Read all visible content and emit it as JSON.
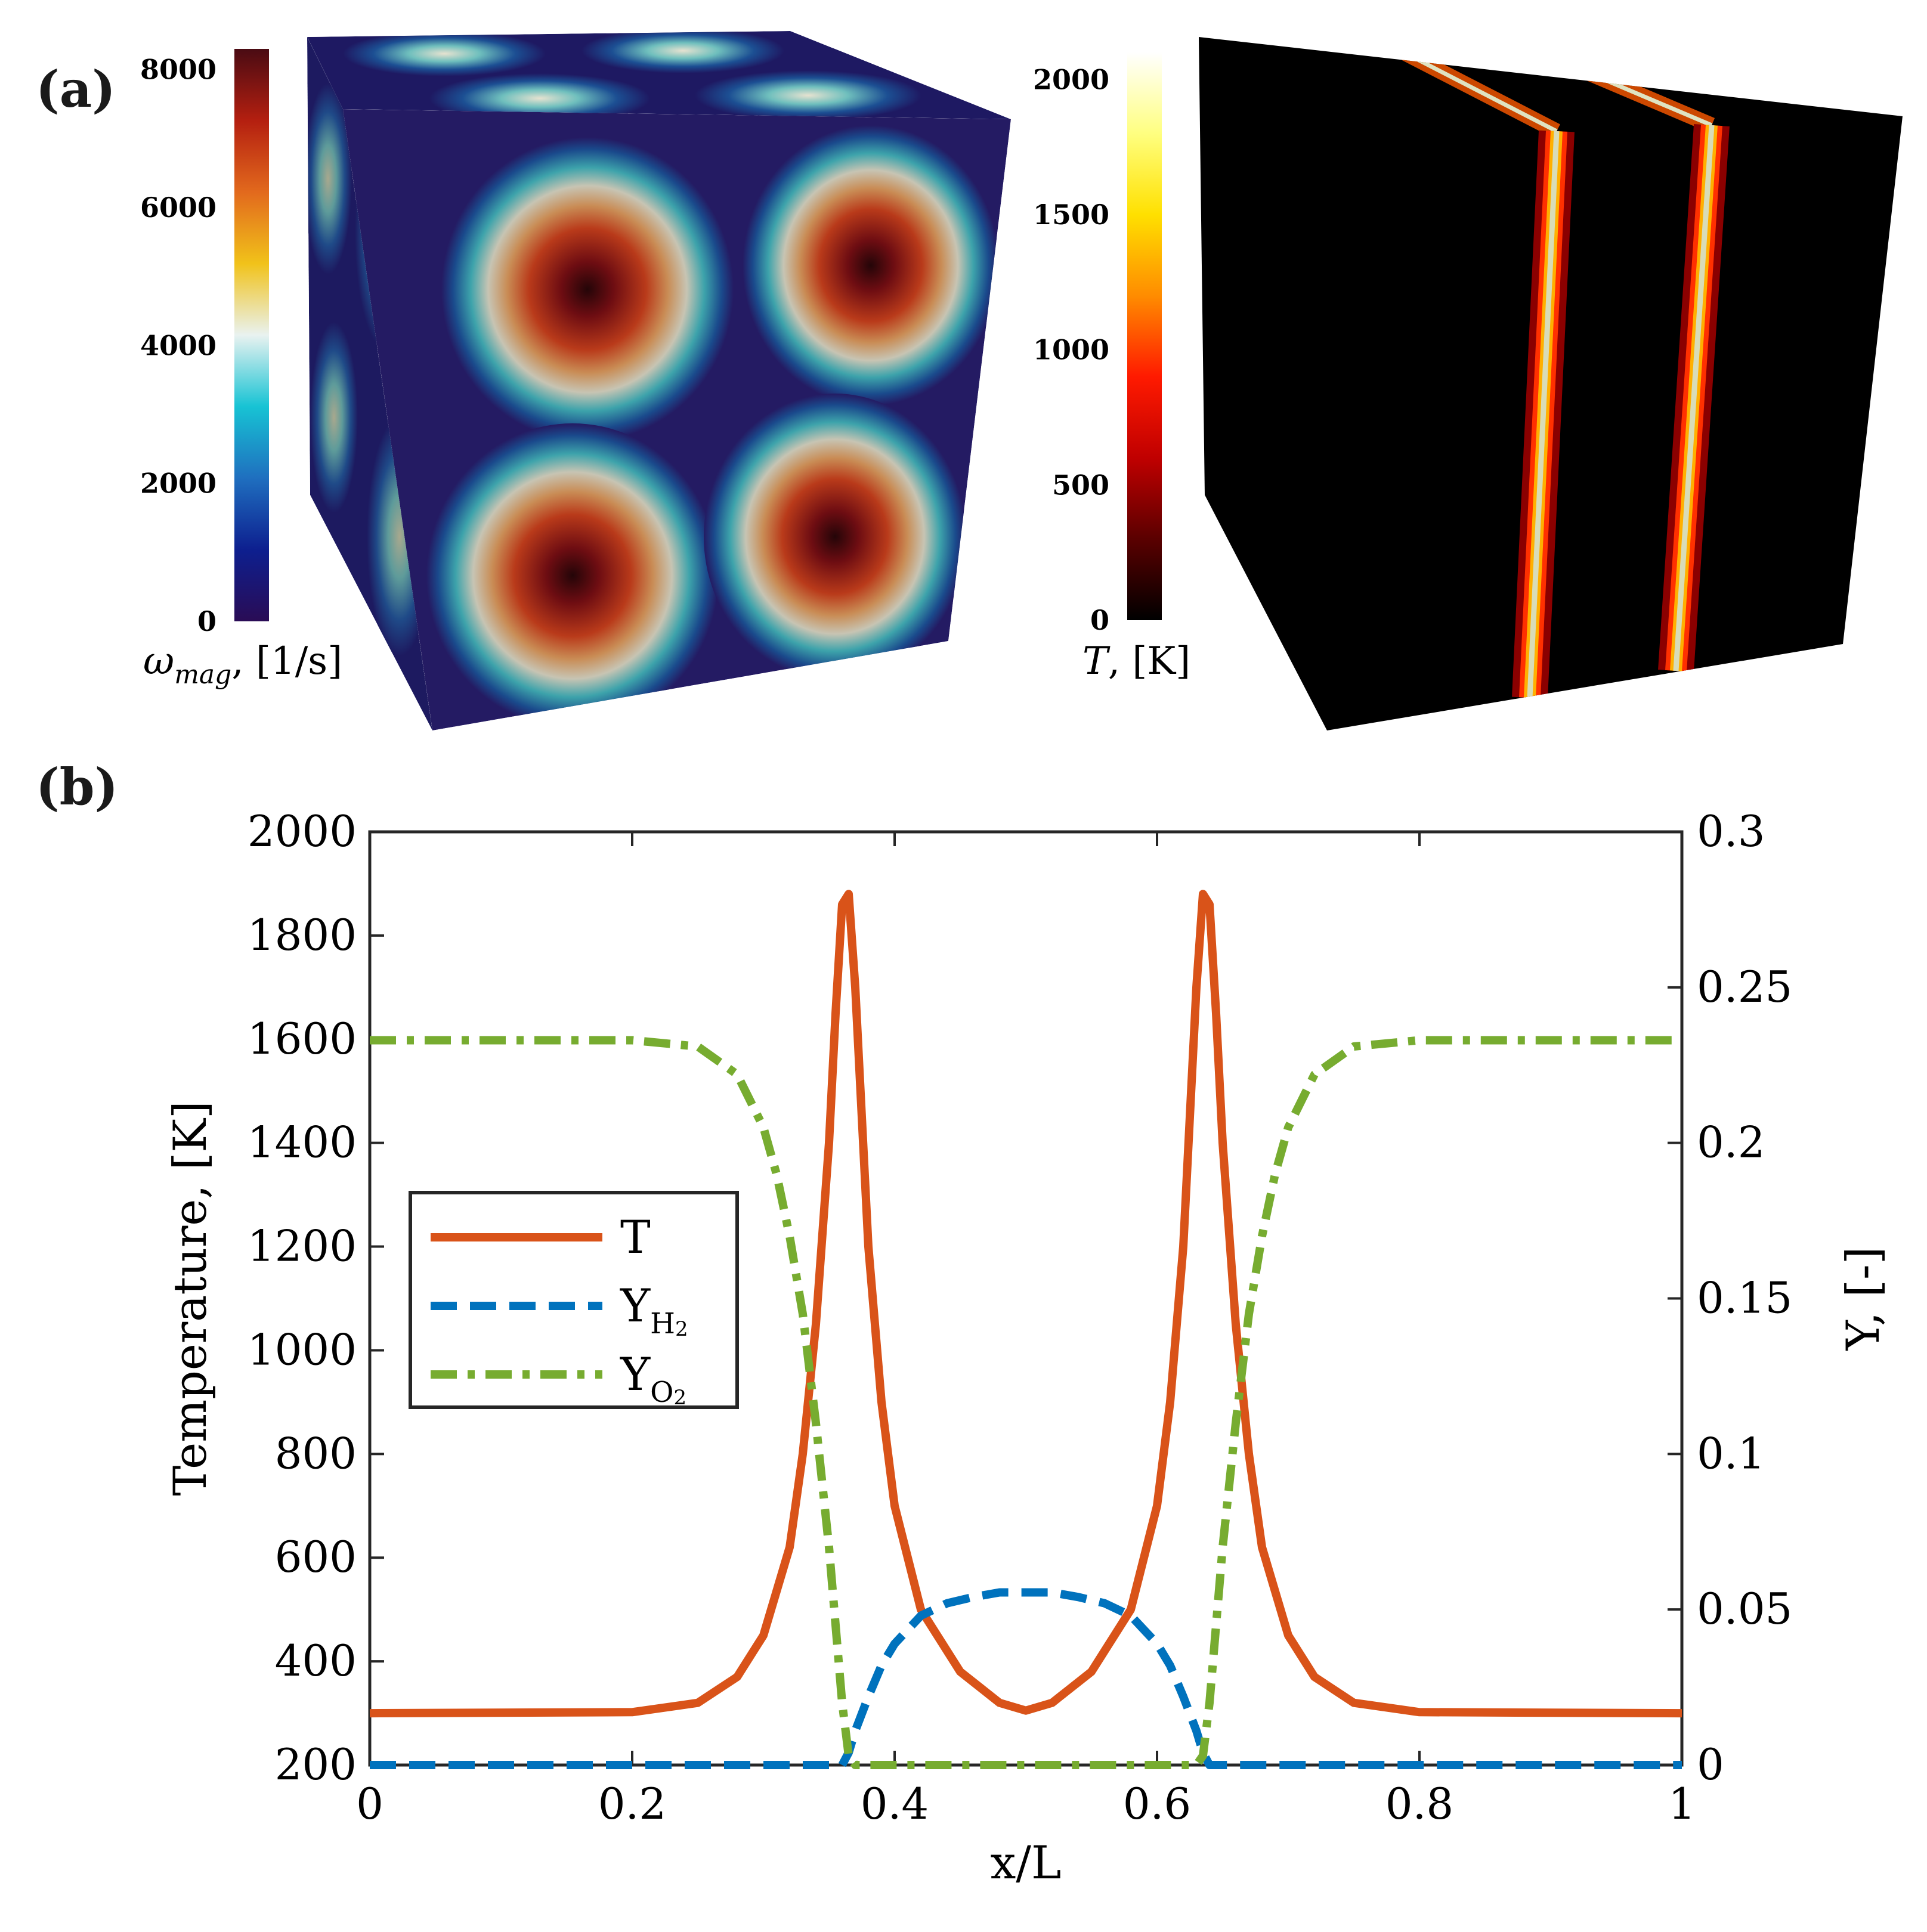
{
  "panel_labels": {
    "a": "(a)",
    "b": "(b)"
  },
  "colorbars": {
    "vorticity": {
      "label_symbol": "ω",
      "label_subscript": "mag",
      "label_unit": ", [1/s]",
      "ticks": [
        "0",
        "2000",
        "4000",
        "6000",
        "8000"
      ],
      "range": [
        0,
        8300
      ],
      "colors": [
        "#2a0c55",
        "#0d1f8f",
        "#1f6fbf",
        "#17c3d4",
        "#e9f2f0",
        "#f1c21a",
        "#e2691d",
        "#b41f10",
        "#4a0b13"
      ]
    },
    "temperature": {
      "label_symbol": "T",
      "label_unit": ", [K]",
      "ticks": [
        "0",
        "500",
        "1000",
        "1500",
        "2000"
      ],
      "range": [
        0,
        2100
      ],
      "colors": [
        "#000000",
        "#5a0000",
        "#c00000",
        "#ff1a00",
        "#ff8c00",
        "#ffe000",
        "#ffff80",
        "#ffffff"
      ]
    }
  },
  "chart_data": {
    "type": "line",
    "xlabel": "x/L",
    "ylabel": "Temperature, [K]",
    "y2label": "Y, [-]",
    "xlim": [
      0,
      1
    ],
    "ylim": [
      200,
      2000
    ],
    "y2lim": [
      0,
      0.3
    ],
    "xticks": [
      "0",
      "0.2",
      "0.4",
      "0.6",
      "0.8",
      "1"
    ],
    "yticks": [
      "200",
      "400",
      "600",
      "800",
      "1000",
      "1200",
      "1400",
      "1600",
      "1800",
      "2000"
    ],
    "y2ticks": [
      "0",
      "0.05",
      "0.1",
      "0.15",
      "0.2",
      "0.25",
      "0.3"
    ],
    "legend_position": "center-left",
    "series": [
      {
        "name": "T",
        "axis": "left",
        "style": "solid",
        "color": "#d95319",
        "x": [
          0,
          0.2,
          0.25,
          0.28,
          0.3,
          0.32,
          0.33,
          0.34,
          0.35,
          0.355,
          0.36,
          0.365,
          0.37,
          0.375,
          0.38,
          0.39,
          0.4,
          0.42,
          0.45,
          0.48,
          0.5,
          0.52,
          0.55,
          0.58,
          0.6,
          0.61,
          0.62,
          0.625,
          0.63,
          0.635,
          0.64,
          0.645,
          0.65,
          0.66,
          0.67,
          0.68,
          0.7,
          0.72,
          0.75,
          0.8,
          1
        ],
        "y": [
          300,
          302,
          320,
          370,
          450,
          620,
          800,
          1050,
          1400,
          1650,
          1860,
          1880,
          1700,
          1450,
          1200,
          900,
          700,
          500,
          380,
          320,
          305,
          320,
          380,
          500,
          700,
          900,
          1200,
          1450,
          1700,
          1880,
          1860,
          1650,
          1400,
          1050,
          800,
          620,
          450,
          370,
          320,
          302,
          300
        ]
      },
      {
        "name": "Y_H2",
        "label_main": "Y",
        "label_sub": "H",
        "label_sub2": "2",
        "axis": "right",
        "style": "dashed",
        "color": "#0072bd",
        "x": [
          0,
          0.36,
          0.365,
          0.37,
          0.38,
          0.39,
          0.4,
          0.42,
          0.44,
          0.46,
          0.48,
          0.5,
          0.52,
          0.54,
          0.56,
          0.58,
          0.6,
          0.61,
          0.62,
          0.63,
          0.635,
          0.64,
          1
        ],
        "y": [
          0,
          0,
          0.004,
          0.011,
          0.022,
          0.032,
          0.039,
          0.048,
          0.052,
          0.054,
          0.0555,
          0.0555,
          0.0555,
          0.054,
          0.052,
          0.048,
          0.039,
          0.032,
          0.022,
          0.011,
          0.004,
          0,
          0
        ]
      },
      {
        "name": "Y_O2",
        "label_main": "Y",
        "label_sub": "O",
        "label_sub2": "2",
        "axis": "right",
        "style": "dashdot",
        "color": "#77ac30",
        "x": [
          0,
          0.2,
          0.25,
          0.28,
          0.3,
          0.31,
          0.32,
          0.33,
          0.34,
          0.35,
          0.36,
          0.365,
          0.37,
          0.63,
          0.635,
          0.64,
          0.65,
          0.66,
          0.67,
          0.68,
          0.69,
          0.7,
          0.72,
          0.75,
          0.8,
          1
        ],
        "y": [
          0.233,
          0.233,
          0.231,
          0.222,
          0.205,
          0.19,
          0.17,
          0.145,
          0.11,
          0.07,
          0.02,
          0.003,
          0,
          0,
          0.003,
          0.02,
          0.07,
          0.11,
          0.145,
          0.17,
          0.19,
          0.205,
          0.222,
          0.231,
          0.233,
          0.233
        ]
      }
    ]
  }
}
